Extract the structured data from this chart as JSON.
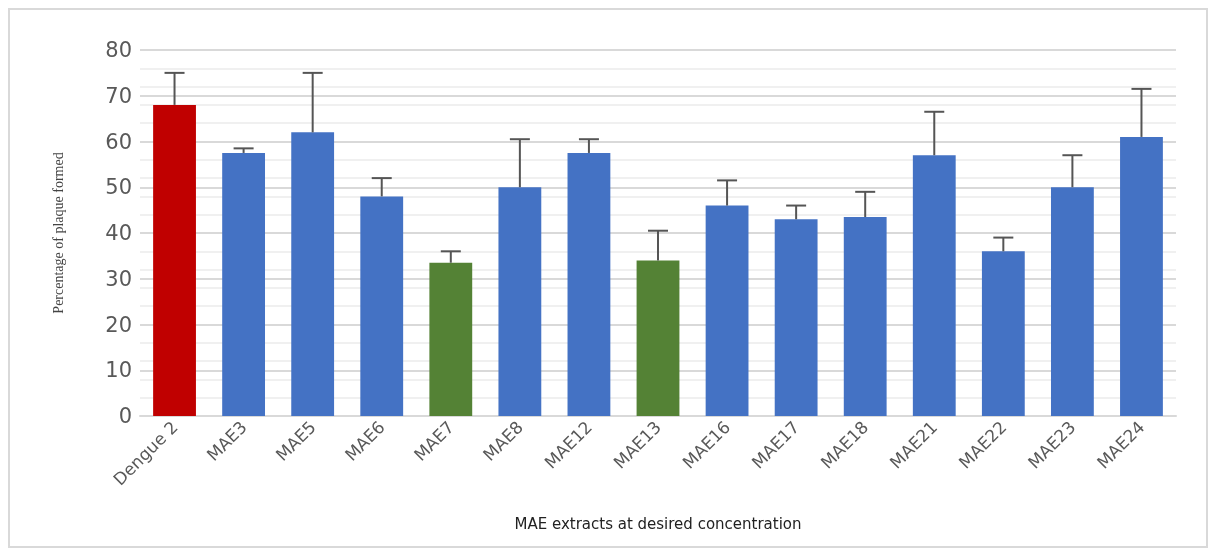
{
  "chart_data": {
    "type": "bar",
    "xlabel": "MAE extracts at desired concentration",
    "ylabel": "Percentage of plaque formed",
    "categories": [
      "Dengue 2",
      "MAE3",
      "MAE5",
      "MAE6",
      "MAE7",
      "MAE8",
      "MAE12",
      "MAE13",
      "MAE16",
      "MAE17",
      "MAE18",
      "MAE21",
      "MAE22",
      "MAE23",
      "MAE24"
    ],
    "values": [
      68,
      57.5,
      62,
      48,
      33.5,
      50,
      57.5,
      34,
      46,
      43,
      43.5,
      57,
      36,
      50,
      61
    ],
    "colors": [
      "#c00000",
      "#4472c4",
      "#4472c4",
      "#4472c4",
      "#548235",
      "#4472c4",
      "#4472c4",
      "#548235",
      "#4472c4",
      "#4472c4",
      "#4472c4",
      "#4472c4",
      "#4472c4",
      "#4472c4",
      "#4472c4"
    ],
    "errors": [
      [
        68,
        75
      ],
      [
        57.5,
        58.5
      ],
      [
        62,
        75
      ],
      [
        48,
        52
      ],
      [
        33.5,
        36
      ],
      [
        50,
        60.5
      ],
      [
        57.5,
        60.5
      ],
      [
        34,
        40.5
      ],
      [
        46,
        51.5
      ],
      [
        43,
        46
      ],
      [
        43.5,
        49
      ],
      [
        57,
        66.5
      ],
      [
        36,
        39
      ],
      [
        50,
        57
      ],
      [
        61,
        71.5
      ]
    ],
    "ylim": [
      0,
      80
    ],
    "yticks": [
      0,
      10,
      20,
      30,
      40,
      50,
      60,
      70,
      80
    ],
    "grid": "y"
  }
}
